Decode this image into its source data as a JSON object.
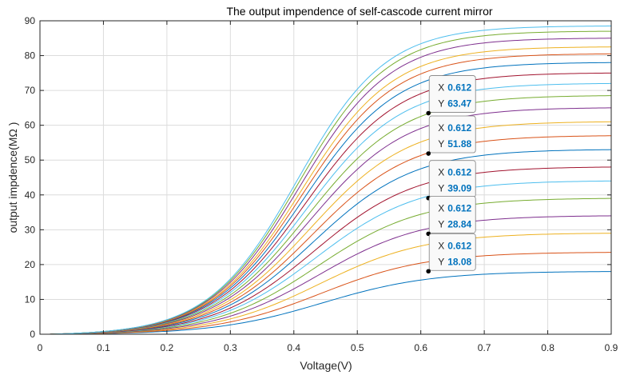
{
  "chart_data": {
    "type": "line",
    "title": "The output impendence of self-cascode current mirror",
    "xlabel": "Voltage(V)",
    "ylabel": "output impdence(MΩ )",
    "xlim": [
      0,
      0.9
    ],
    "ylim": [
      0,
      90
    ],
    "xticks": [
      "0",
      "0.1",
      "0.2",
      "0.3",
      "0.4",
      "0.5",
      "0.6",
      "0.7",
      "0.8",
      "0.9"
    ],
    "yticks": [
      "0",
      "10",
      "20",
      "30",
      "40",
      "50",
      "60",
      "70",
      "80",
      "90"
    ],
    "grid": "on",
    "legend": "none",
    "x_start": 0.015,
    "x_end": 0.9,
    "series": [
      {
        "color": "#0072BD",
        "end_value": 18.0
      },
      {
        "color": "#D95319",
        "end_value": 23.5
      },
      {
        "color": "#EDB120",
        "end_value": 29.0
      },
      {
        "color": "#7E2F8E",
        "end_value": 34.0
      },
      {
        "color": "#77AC30",
        "end_value": 39.0
      },
      {
        "color": "#4DBEEE",
        "end_value": 44.0
      },
      {
        "color": "#A2142F",
        "end_value": 48.0
      },
      {
        "color": "#0072BD",
        "end_value": 53.0
      },
      {
        "color": "#D95319",
        "end_value": 57.0
      },
      {
        "color": "#EDB120",
        "end_value": 61.0
      },
      {
        "color": "#7E2F8E",
        "end_value": 65.0
      },
      {
        "color": "#77AC30",
        "end_value": 68.5
      },
      {
        "color": "#4DBEEE",
        "end_value": 72.0
      },
      {
        "color": "#A2142F",
        "end_value": 75.0
      },
      {
        "color": "#0072BD",
        "end_value": 78.0
      },
      {
        "color": "#D95319",
        "end_value": 80.5
      },
      {
        "color": "#EDB120",
        "end_value": 82.5
      },
      {
        "color": "#7E2F8E",
        "end_value": 85.0
      },
      {
        "color": "#77AC30",
        "end_value": 87.0
      },
      {
        "color": "#4DBEEE",
        "end_value": 88.5
      }
    ],
    "datatips": [
      {
        "x_label": "X",
        "y_label": "Y",
        "x": 0.612,
        "y": 63.47,
        "x_text": "0.612",
        "y_text": "63.47"
      },
      {
        "x_label": "X",
        "y_label": "Y",
        "x": 0.612,
        "y": 51.88,
        "x_text": "0.612",
        "y_text": "51.88"
      },
      {
        "x_label": "X",
        "y_label": "Y",
        "x": 0.612,
        "y": 39.09,
        "x_text": "0.612",
        "y_text": "39.09"
      },
      {
        "x_label": "X",
        "y_label": "Y",
        "x": 0.612,
        "y": 28.84,
        "x_text": "0.612",
        "y_text": "28.84"
      },
      {
        "x_label": "X",
        "y_label": "Y",
        "x": 0.612,
        "y": 18.08,
        "x_text": "0.612",
        "y_text": "18.08"
      }
    ]
  }
}
